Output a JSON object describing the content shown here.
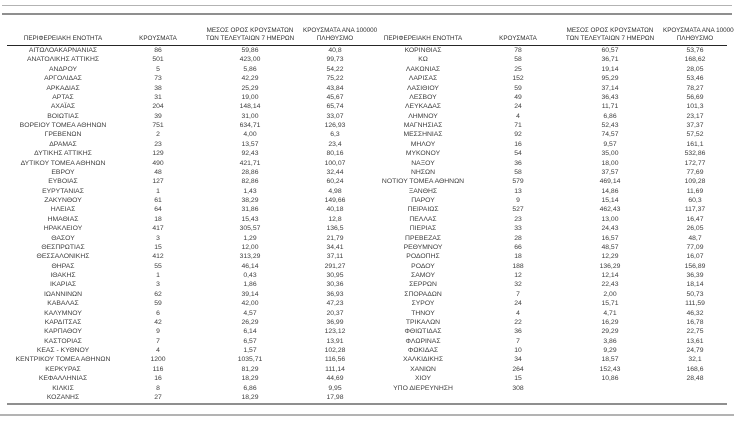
{
  "document": {
    "language": "el",
    "description_headers": {
      "col_region": "ΠΕΡΙΦΕΡΕΙΑΚΗ ΕΝΟΤΗΤΑ",
      "col_cases": "ΚΡΟΥΣΜΑΤΑ",
      "col_avg_7days": "ΜΕΣΟΣ ΟΡΟΣ ΚΡΟΥΣΜΑΤΩΝ ΤΩΝ ΤΕΛΕΥΤΑΙΩΝ 7 ΗΜΕΡΩΝ",
      "col_per_100k": "ΚΡΟΥΣΜΑΤΑ ΑΝΑ 100000 ΠΛΗΘΥΣΜΟ"
    }
  },
  "headers": [
    {
      "lines": [
        "ΠΕΡΙΦΕΡΕΙΑΚΗ ΕΝΟΤΗΤΑ"
      ]
    },
    {
      "lines": [
        "ΚΡΟΥΣΜΑΤΑ"
      ]
    },
    {
      "lines": [
        "ΜΕΣΟΣ ΟΡΟΣ ΚΡΟΥΣΜΑΤΩΝ",
        "ΤΩΝ ΤΕΛΕΥΤΑΙΩΝ 7 ΗΜΕΡΩΝ"
      ]
    },
    {
      "lines": [
        "ΚΡΟΥΣΜΑΤΑ ΑΝΑ 100000",
        "ΠΛΗΘΥΣΜΟ"
      ]
    }
  ],
  "tables": [
    {
      "rows": [
        [
          "ΑΙΤΩΛΟΑΚΑΡΝΑΝΙΑΣ",
          "86",
          "59,86",
          "40,8"
        ],
        [
          "ΑΝΑΤΟΛΙΚΗΣ ΑΤΤΙΚΗΣ",
          "501",
          "423,00",
          "99,73"
        ],
        [
          "ΑΝΔΡΟΥ",
          "5",
          "5,86",
          "54,22"
        ],
        [
          "ΑΡΓΟΛΙΔΑΣ",
          "73",
          "42,29",
          "75,22"
        ],
        [
          "ΑΡΚΑΔΙΑΣ",
          "38",
          "25,29",
          "43,84"
        ],
        [
          "ΑΡΤΑΣ",
          "31",
          "19,00",
          "45,67"
        ],
        [
          "ΑΧΑΪΑΣ",
          "204",
          "148,14",
          "65,74"
        ],
        [
          "ΒΟΙΩΤΙΑΣ",
          "39",
          "31,00",
          "33,07"
        ],
        [
          "ΒΟΡΕΙΟΥ ΤΟΜΕΑ ΑΘΗΝΩΝ",
          "751",
          "634,71",
          "126,93"
        ],
        [
          "ΓΡΕΒΕΝΩΝ",
          "2",
          "4,00",
          "6,3"
        ],
        [
          "ΔΡΑΜΑΣ",
          "23",
          "13,57",
          "23,4"
        ],
        [
          "ΔΥΤΙΚΗΣ ΑΤΤΙΚΗΣ",
          "129",
          "92,43",
          "80,16"
        ],
        [
          "ΔΥΤΙΚΟΥ ΤΟΜΕΑ ΑΘΗΝΩΝ",
          "490",
          "421,71",
          "100,07"
        ],
        [
          "ΕΒΡΟΥ",
          "48",
          "28,86",
          "32,44"
        ],
        [
          "ΕΥΒΟΙΑΣ",
          "127",
          "82,86",
          "60,24"
        ],
        [
          "ΕΥΡΥΤΑΝΙΑΣ",
          "1",
          "1,43",
          "4,98"
        ],
        [
          "ΖΑΚΥΝΘΟΥ",
          "61",
          "38,29",
          "149,66"
        ],
        [
          "ΗΛΕΙΑΣ",
          "64",
          "31,86",
          "40,18"
        ],
        [
          "ΗΜΑΘΙΑΣ",
          "18",
          "15,43",
          "12,8"
        ],
        [
          "ΗΡΑΚΛΕΙΟΥ",
          "417",
          "305,57",
          "136,5"
        ],
        [
          "ΘΑΣΟΥ",
          "3",
          "1,29",
          "21,79"
        ],
        [
          "ΘΕΣΠΡΩΤΙΑΣ",
          "15",
          "12,00",
          "34,41"
        ],
        [
          "ΘΕΣΣΑΛΟΝΙΚΗΣ",
          "412",
          "313,29",
          "37,11"
        ],
        [
          "ΘΗΡΑΣ",
          "55",
          "46,14",
          "291,27"
        ],
        [
          "ΙΘΑΚΗΣ",
          "1",
          "0,43",
          "30,95"
        ],
        [
          "ΙΚΑΡΙΑΣ",
          "3",
          "1,86",
          "30,36"
        ],
        [
          "ΙΩΑΝΝΙΝΩΝ",
          "62",
          "39,14",
          "36,93"
        ],
        [
          "ΚΑΒΑΛΑΣ",
          "59",
          "42,00",
          "47,23"
        ],
        [
          "ΚΑΛΥΜΝΟΥ",
          "6",
          "4,57",
          "20,37"
        ],
        [
          "ΚΑΡΔΙΤΣΑΣ",
          "42",
          "26,29",
          "36,99"
        ],
        [
          "ΚΑΡΠΑΘΟΥ",
          "9",
          "6,14",
          "123,12"
        ],
        [
          "ΚΑΣΤΟΡΙΑΣ",
          "7",
          "6,57",
          "13,91"
        ],
        [
          "ΚΕΑΣ - ΚΥΘΝΟΥ",
          "4",
          "1,57",
          "102,28"
        ],
        [
          "ΚΕΝΤΡΙΚΟΥ ΤΟΜΕΑ ΑΘΗΝΩΝ",
          "1200",
          "1035,71",
          "116,56"
        ],
        [
          "ΚΕΡΚΥΡΑΣ",
          "116",
          "81,29",
          "111,14"
        ],
        [
          "ΚΕΦΑΛΛΗΝΙΑΣ",
          "16",
          "18,29",
          "44,69"
        ],
        [
          "ΚΙΛΚΙΣ",
          "8",
          "6,86",
          "9,95"
        ],
        [
          "ΚΟΖΑΝΗΣ",
          "27",
          "18,29",
          "17,98"
        ]
      ]
    },
    {
      "rows": [
        [
          "ΚΟΡΙΝΘΙΑΣ",
          "78",
          "60,57",
          "53,76"
        ],
        [
          "ΚΩ",
          "58",
          "36,71",
          "168,62"
        ],
        [
          "ΛΑΚΩΝΙΑΣ",
          "25",
          "19,14",
          "28,05"
        ],
        [
          "ΛΑΡΙΣΑΣ",
          "152",
          "95,29",
          "53,46"
        ],
        [
          "ΛΑΣΙΘΙΟΥ",
          "59",
          "37,14",
          "78,27"
        ],
        [
          "ΛΕΣΒΟΥ",
          "49",
          "36,43",
          "56,69"
        ],
        [
          "ΛΕΥΚΑΔΑΣ",
          "24",
          "11,71",
          "101,3"
        ],
        [
          "ΛΗΜΝΟΥ",
          "4",
          "6,86",
          "23,17"
        ],
        [
          "ΜΑΓΝΗΣΙΑΣ",
          "71",
          "52,43",
          "37,37"
        ],
        [
          "ΜΕΣΣΗΝΙΑΣ",
          "92",
          "74,57",
          "57,52"
        ],
        [
          "ΜΗΛΟΥ",
          "16",
          "9,57",
          "161,1"
        ],
        [
          "ΜΥΚΟΝΟΥ",
          "54",
          "35,00",
          "532,86"
        ],
        [
          "ΝΑΞΟΥ",
          "36",
          "18,00",
          "172,77"
        ],
        [
          "ΝΗΣΩΝ",
          "58",
          "37,57",
          "77,69"
        ],
        [
          "ΝΟΤΙΟΥ ΤΟΜΕΑ ΑΘΗΝΩΝ",
          "579",
          "469,14",
          "109,28"
        ],
        [
          "ΞΑΝΘΗΣ",
          "13",
          "14,86",
          "11,69"
        ],
        [
          "ΠΑΡΟΥ",
          "9",
          "15,14",
          "60,3"
        ],
        [
          "ΠΕΙΡΑΙΩΣ",
          "527",
          "462,43",
          "117,37"
        ],
        [
          "ΠΕΛΛΑΣ",
          "23",
          "13,00",
          "16,47"
        ],
        [
          "ΠΙΕΡΙΑΣ",
          "33",
          "24,43",
          "26,05"
        ],
        [
          "ΠΡΕΒΕΖΑΣ",
          "28",
          "16,57",
          "48,7"
        ],
        [
          "ΡΕΘΥΜΝΟΥ",
          "66",
          "48,57",
          "77,09"
        ],
        [
          "ΡΟΔΟΠΗΣ",
          "18",
          "12,29",
          "16,07"
        ],
        [
          "ΡΟΔΟΥ",
          "188",
          "136,29",
          "156,89"
        ],
        [
          "ΣΑΜΟΥ",
          "12",
          "12,14",
          "36,39"
        ],
        [
          "ΣΕΡΡΩΝ",
          "32",
          "22,43",
          "18,14"
        ],
        [
          "ΣΠΟΡΑΔΩΝ",
          "7",
          "2,00",
          "50,73"
        ],
        [
          "ΣΥΡΟΥ",
          "24",
          "15,71",
          "111,59"
        ],
        [
          "ΤΗΝΟΥ",
          "4",
          "4,71",
          "46,32"
        ],
        [
          "ΤΡΙΚΑΛΩΝ",
          "22",
          "16,29",
          "16,78"
        ],
        [
          "ΦΘΙΩΤΙΔΑΣ",
          "36",
          "29,29",
          "22,75"
        ],
        [
          "ΦΛΩΡΙΝΑΣ",
          "7",
          "3,86",
          "13,61"
        ],
        [
          "ΦΩΚΙΔΑΣ",
          "10",
          "9,29",
          "24,79"
        ],
        [
          "ΧΑΛΚΙΔΙΚΗΣ",
          "34",
          "18,57",
          "32,1"
        ],
        [
          "ΧΑΝΙΩΝ",
          "264",
          "152,43",
          "168,6"
        ],
        [
          "ΧΙΟΥ",
          "15",
          "10,86",
          "28,48"
        ],
        [
          "ΥΠΟ ΔΙΕΡΕΥΝΗΣΗ",
          "308",
          "",
          ""
        ]
      ]
    }
  ],
  "colors": {
    "text": "#3d3d3d",
    "header_text": "#2f2f2f",
    "header_rule": "#262626",
    "divider_gray": "#8f8f8f",
    "divider_light": "#b3b3b3",
    "background": "#ffffff"
  }
}
